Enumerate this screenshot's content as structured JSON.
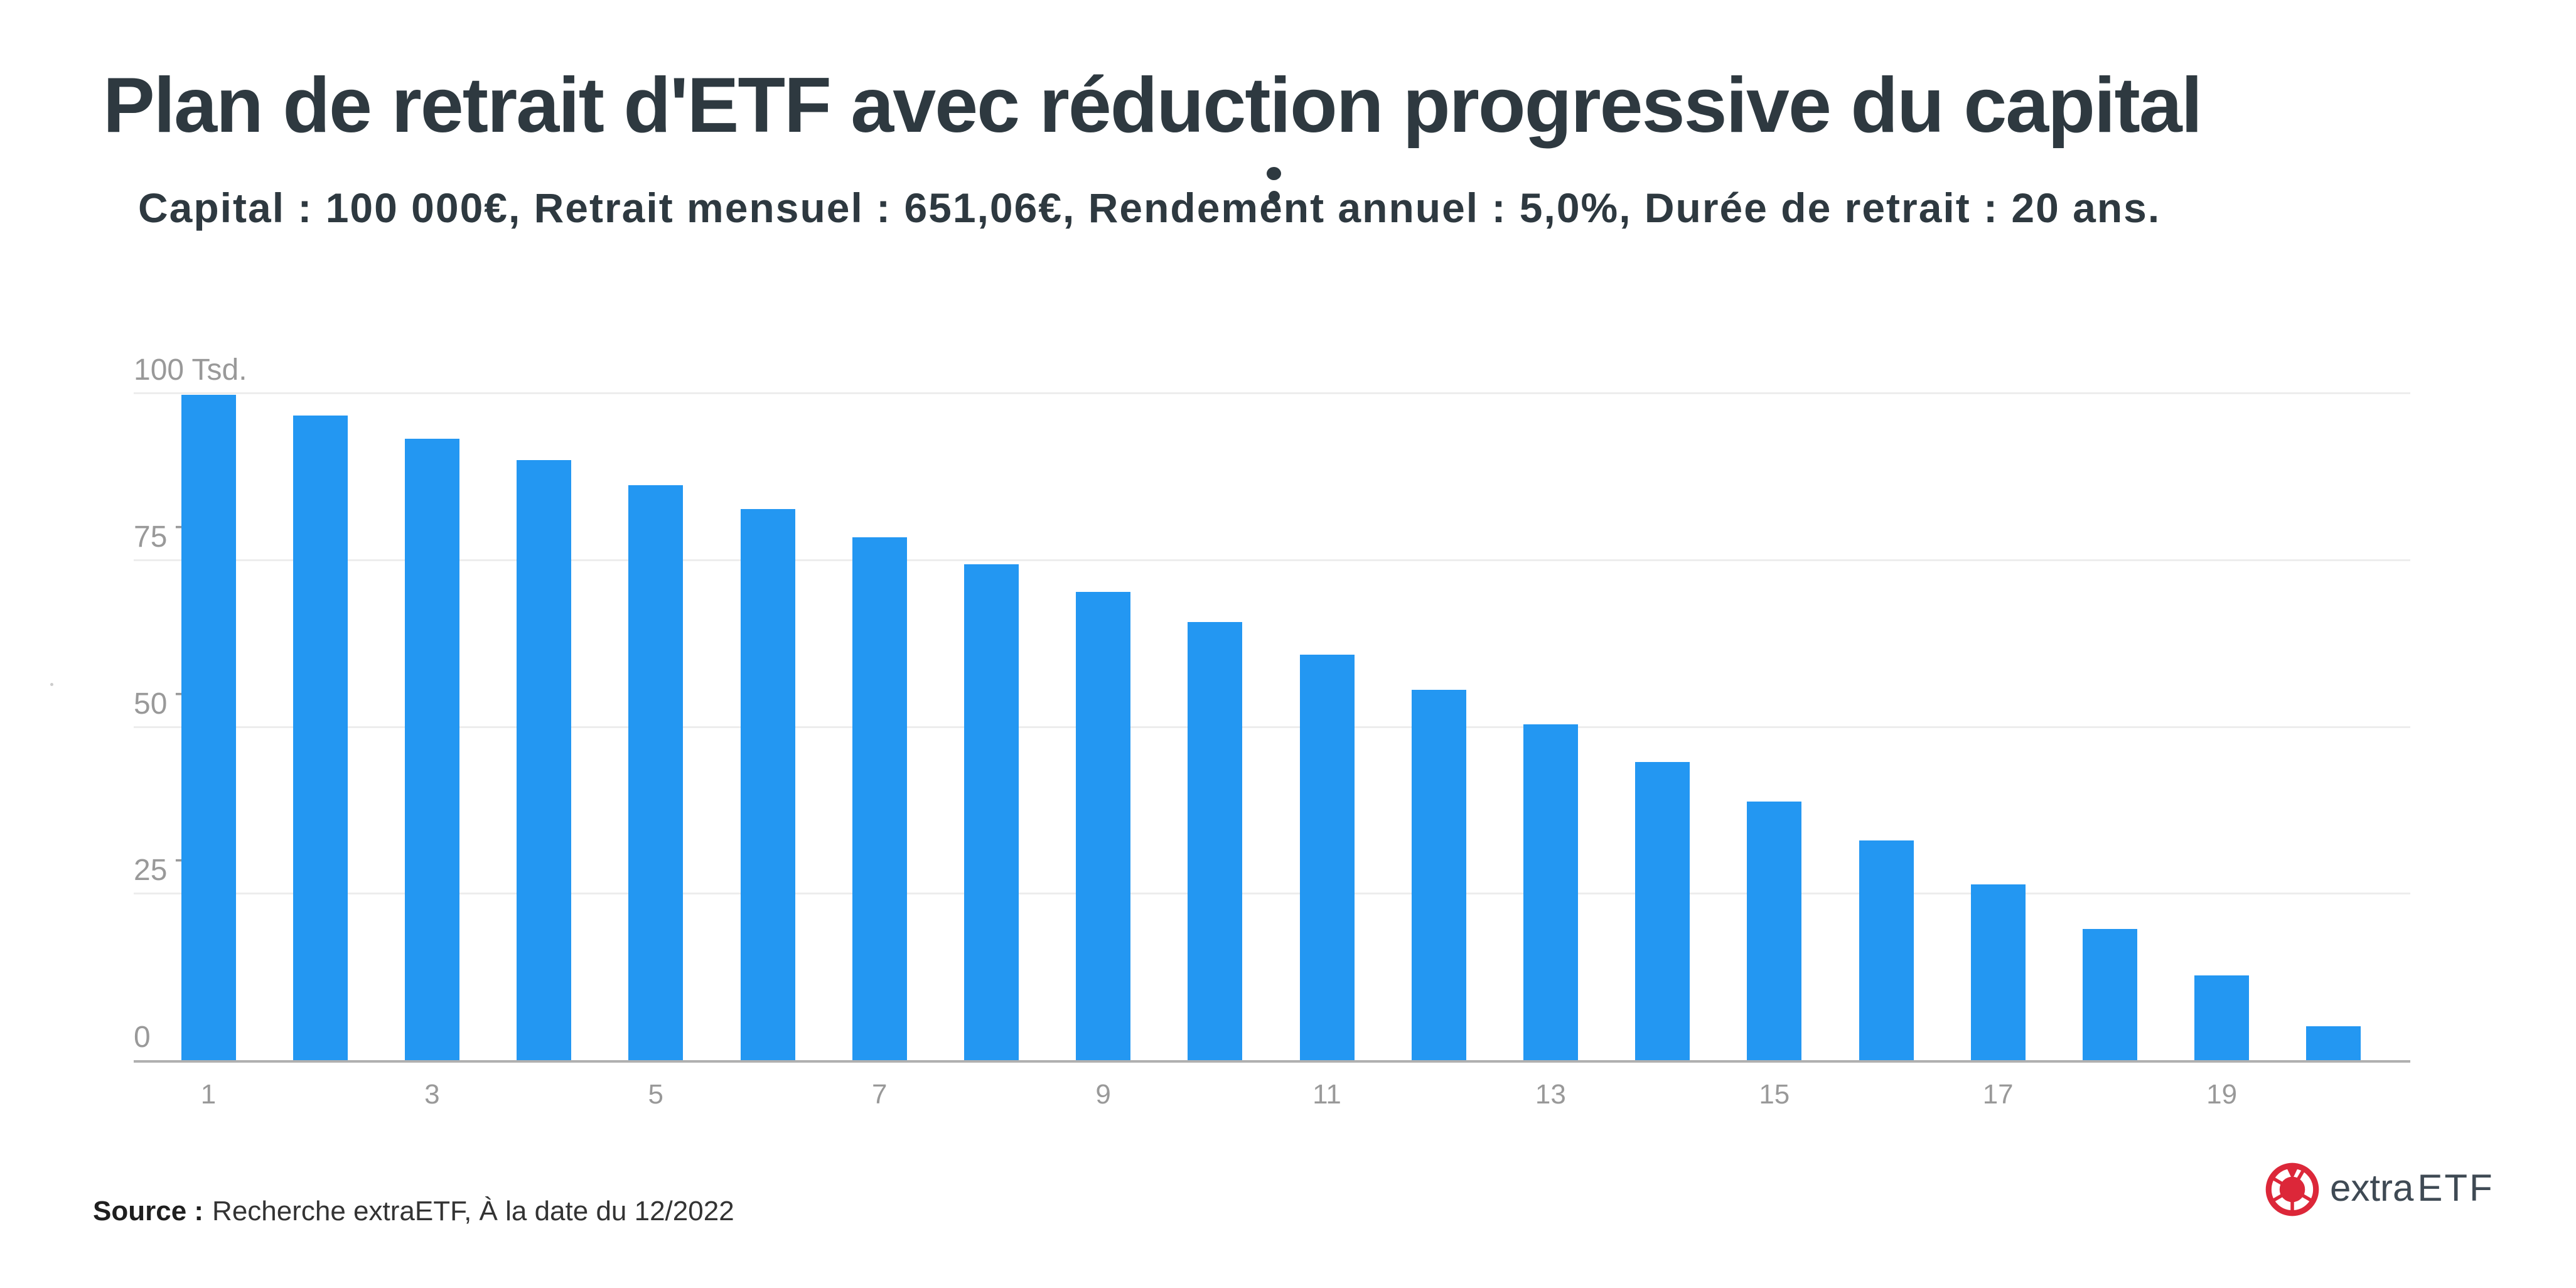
{
  "page": {
    "title": "Plan de retrait d'ETF avec réduction progressive du capital",
    "subtitle": "Capital : 100 000€, Retrait mensuel : 651,06€, Rendement annuel : 5,0%, Durée de retrait : 20 ans.",
    "source_label": "Source :",
    "source_text": "Recherche extraETF, À la date du 12/2022"
  },
  "logo": {
    "text_regular": "extra",
    "text_caps": "ETF"
  },
  "colors": {
    "bar_blue": "#2397f2",
    "heading_dark": "#2e3940",
    "gridline": "#ededed",
    "axis_line": "#b0b0b0",
    "tick_text": "#999999",
    "logo_red": "#dc2739",
    "logo_text": "#3f4a54"
  },
  "chart_data": {
    "type": "bar",
    "title": "Plan de retrait d'ETF avec réduction progressive du capital",
    "xlabel": "",
    "ylabel": "",
    "unit": "€",
    "categories": [
      1,
      2,
      3,
      4,
      5,
      6,
      7,
      8,
      9,
      10,
      11,
      12,
      13,
      14,
      15,
      16,
      17,
      18,
      19,
      20
    ],
    "values": [
      99700,
      96600,
      93100,
      89900,
      86200,
      82600,
      78400,
      74300,
      70200,
      65700,
      60800,
      55500,
      50300,
      44700,
      38800,
      32900,
      26300,
      19700,
      12700,
      5100
    ],
    "ylim": [
      0,
      100000
    ],
    "y_ticks": [
      {
        "value": 100000,
        "label": "100 Tsd."
      },
      {
        "value": 75000,
        "label": "75 Tsd."
      },
      {
        "value": 50000,
        "label": "50 Tsd."
      },
      {
        "value": 25000,
        "label": "25 Tsd."
      },
      {
        "value": 0,
        "label": "0"
      }
    ],
    "x_ticks": [
      1,
      3,
      5,
      7,
      9,
      11,
      13,
      15,
      17,
      19
    ],
    "grid": true,
    "legend": false
  }
}
